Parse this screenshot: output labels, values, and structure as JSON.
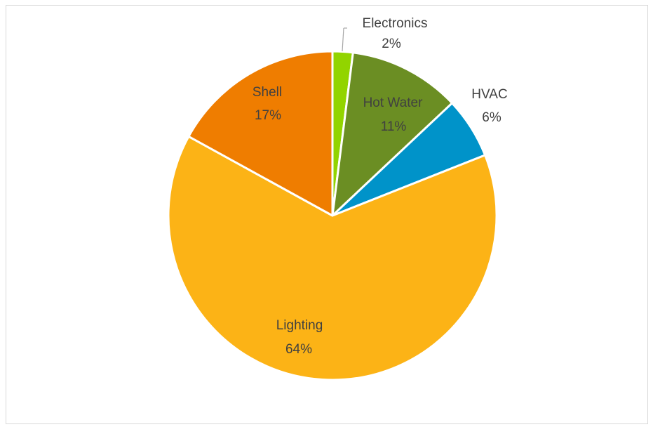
{
  "chart_data": {
    "type": "pie",
    "title": "",
    "slices": [
      {
        "name": "Electronics",
        "value": 2,
        "label": "2%",
        "color": "#92d400"
      },
      {
        "name": "Hot Water",
        "value": 11,
        "label": "11%",
        "color": "#6b8e23"
      },
      {
        "name": "HVAC",
        "value": 6,
        "label": "6%",
        "color": "#0093c9"
      },
      {
        "name": "Lighting",
        "value": 64,
        "label": "64%",
        "color": "#fcb316"
      },
      {
        "name": "Shell",
        "value": 17,
        "label": "17%",
        "color": "#ef7d00"
      }
    ],
    "legend": "none",
    "data_labels": "category name and percentage"
  }
}
